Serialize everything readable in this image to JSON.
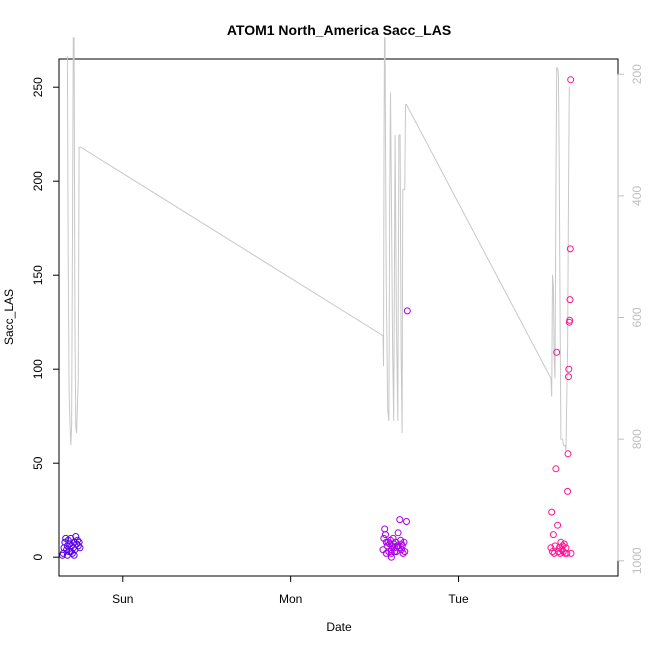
{
  "chart_data": {
    "type": "scatter",
    "title": "ATOM1 North_America Sacc_LAS",
    "xlabel": "Date",
    "ylabel": "Sacc_LAS",
    "x_ticks": [
      "Sun",
      "Mon",
      "Tue"
    ],
    "y_ticks": [
      0,
      50,
      100,
      150,
      200,
      250
    ],
    "right_ticks": [
      200,
      400,
      600,
      800,
      1000
    ],
    "xlim_days": [
      -0.38,
      2.95
    ],
    "ylim": [
      -10,
      265
    ],
    "right_ylim": [
      1025,
      175
    ],
    "right_axis_color": "#bfbfbf",
    "line_color": "#c8c8c8",
    "line_series": {
      "name": "",
      "points": [
        [
          -0.33,
          170
        ],
        [
          -0.325,
          500
        ],
        [
          -0.32,
          720
        ],
        [
          -0.315,
          770
        ],
        [
          -0.31,
          810
        ],
        [
          -0.305,
          780
        ],
        [
          -0.3,
          500
        ],
        [
          -0.295,
          140
        ],
        [
          -0.29,
          140
        ],
        [
          -0.285,
          600
        ],
        [
          -0.28,
          780
        ],
        [
          -0.275,
          790
        ],
        [
          -0.27,
          740
        ],
        [
          -0.265,
          700
        ],
        [
          -0.26,
          320
        ],
        [
          -0.255,
          320
        ],
        [
          -0.25,
          320
        ],
        [
          1.55,
          630
        ],
        [
          1.553,
          680
        ],
        [
          1.556,
          330
        ],
        [
          1.559,
          140
        ],
        [
          1.562,
          140
        ],
        [
          1.57,
          550
        ],
        [
          1.578,
          750
        ],
        [
          1.585,
          770
        ],
        [
          1.59,
          400
        ],
        [
          1.595,
          230
        ],
        [
          1.6,
          400
        ],
        [
          1.607,
          650
        ],
        [
          1.614,
          770
        ],
        [
          1.622,
          300
        ],
        [
          1.63,
          600
        ],
        [
          1.638,
          770
        ],
        [
          1.645,
          300
        ],
        [
          1.652,
          300
        ],
        [
          1.658,
          650
        ],
        [
          1.664,
          790
        ],
        [
          1.668,
          390
        ],
        [
          1.675,
          390
        ],
        [
          1.68,
          390
        ],
        [
          1.684,
          250
        ],
        [
          1.69,
          250
        ],
        [
          2.55,
          700
        ],
        [
          2.555,
          730
        ],
        [
          2.56,
          530
        ],
        [
          2.565,
          550
        ],
        [
          2.57,
          670
        ],
        [
          2.575,
          700
        ],
        [
          2.58,
          400
        ],
        [
          2.585,
          190
        ],
        [
          2.59,
          190
        ],
        [
          2.595,
          200
        ],
        [
          2.6,
          340
        ],
        [
          2.605,
          600
        ],
        [
          2.61,
          800
        ],
        [
          2.62,
          800
        ],
        [
          2.625,
          810
        ],
        [
          2.635,
          810
        ],
        [
          2.64,
          820
        ],
        [
          2.645,
          730
        ],
        [
          2.65,
          650
        ],
        [
          2.655,
          400
        ],
        [
          2.66,
          220
        ]
      ]
    },
    "scatter_series": [
      {
        "color": "#5a00e6",
        "points": [
          [
            -0.36,
            1
          ],
          [
            -0.355,
            2
          ],
          [
            -0.35,
            5
          ],
          [
            -0.345,
            8
          ],
          [
            -0.34,
            10
          ],
          [
            -0.335,
            4
          ],
          [
            -0.33,
            6
          ],
          [
            -0.325,
            9
          ],
          [
            -0.32,
            3
          ],
          [
            -0.315,
            7
          ],
          [
            -0.31,
            10
          ],
          [
            -0.305,
            6
          ],
          [
            -0.3,
            2
          ],
          [
            -0.295,
            5
          ],
          [
            -0.29,
            8
          ],
          [
            -0.285,
            4
          ],
          [
            -0.28,
            11
          ],
          [
            -0.275,
            7
          ],
          [
            -0.27,
            9
          ],
          [
            -0.265,
            6
          ],
          [
            -0.26,
            8
          ],
          [
            -0.255,
            5
          ],
          [
            -0.33,
            1
          ],
          [
            -0.31,
            3
          ],
          [
            -0.29,
            1
          ]
        ]
      },
      {
        "color": "#aa00e6",
        "points": [
          [
            1.55,
            4
          ],
          [
            1.555,
            10
          ],
          [
            1.56,
            15
          ],
          [
            1.565,
            12
          ],
          [
            1.57,
            2
          ],
          [
            1.575,
            6
          ],
          [
            1.58,
            8
          ],
          [
            1.585,
            3
          ],
          [
            1.59,
            7
          ],
          [
            1.595,
            9
          ],
          [
            1.6,
            4
          ],
          [
            1.605,
            6
          ],
          [
            1.61,
            10
          ],
          [
            1.615,
            7
          ],
          [
            1.62,
            5
          ],
          [
            1.625,
            8
          ],
          [
            1.63,
            3
          ],
          [
            1.635,
            6
          ],
          [
            1.64,
            13
          ],
          [
            1.645,
            5
          ],
          [
            1.65,
            20
          ],
          [
            1.655,
            9
          ],
          [
            1.66,
            4
          ],
          [
            1.665,
            6
          ],
          [
            1.67,
            2
          ],
          [
            1.675,
            8
          ],
          [
            1.68,
            3
          ],
          [
            1.69,
            19
          ],
          [
            1.695,
            131
          ],
          [
            1.6,
            0
          ],
          [
            1.6,
            2
          ],
          [
            1.57,
            8
          ],
          [
            1.62,
            3
          ],
          [
            1.64,
            6
          ],
          [
            1.66,
            7
          ]
        ]
      },
      {
        "color": "#ff1493",
        "points": [
          [
            2.55,
            5
          ],
          [
            2.555,
            24
          ],
          [
            2.56,
            3
          ],
          [
            2.565,
            12
          ],
          [
            2.57,
            2
          ],
          [
            2.575,
            6
          ],
          [
            2.58,
            47
          ],
          [
            2.585,
            109
          ],
          [
            2.59,
            17
          ],
          [
            2.595,
            3
          ],
          [
            2.6,
            5
          ],
          [
            2.605,
            2
          ],
          [
            2.61,
            8
          ],
          [
            2.615,
            4
          ],
          [
            2.62,
            6
          ],
          [
            2.625,
            3
          ],
          [
            2.63,
            7
          ],
          [
            2.635,
            2
          ],
          [
            2.64,
            5
          ],
          [
            2.645,
            2
          ],
          [
            2.65,
            35
          ],
          [
            2.652,
            55
          ],
          [
            2.655,
            96
          ],
          [
            2.657,
            100
          ],
          [
            2.66,
            125
          ],
          [
            2.662,
            126
          ],
          [
            2.664,
            137
          ],
          [
            2.666,
            164
          ],
          [
            2.668,
            254
          ],
          [
            2.67,
            2
          ]
        ]
      }
    ]
  }
}
